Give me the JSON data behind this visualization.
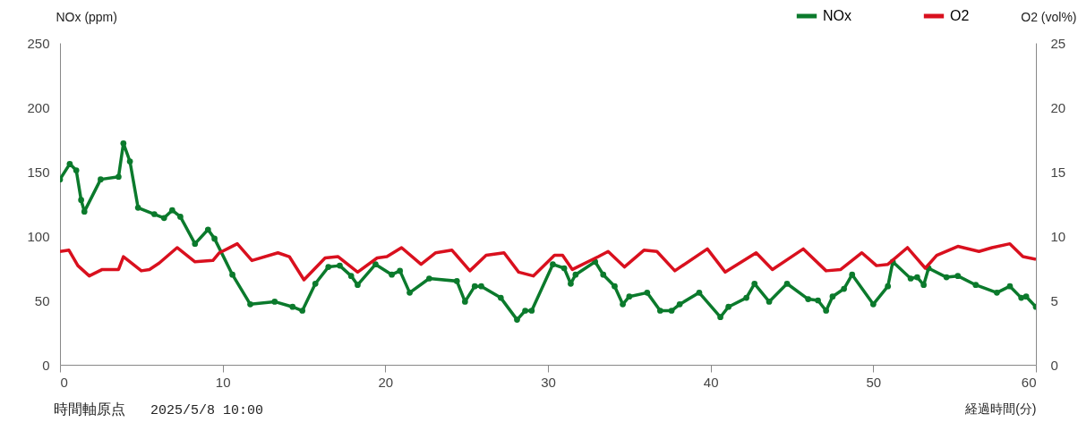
{
  "chart_data": {
    "type": "line",
    "xlabel": "経過時間(分)",
    "ylabel": "NOx (ppm)",
    "y2label": "O2  (vol%)",
    "annotations": [
      "時間軸原点",
      "2025/5/8 10:00"
    ],
    "xlim": [
      0,
      60
    ],
    "xticks": [
      0,
      10,
      20,
      30,
      40,
      50,
      60
    ],
    "ylim": [
      0,
      250
    ],
    "yticks": [
      0,
      50,
      100,
      150,
      200,
      250
    ],
    "y2lim": [
      0,
      25
    ],
    "y2ticks": [
      0,
      5,
      10,
      15,
      20,
      25
    ],
    "legend": "top right",
    "series": [
      {
        "name": "NOx",
        "color": "#0b7a2c",
        "marker": "circle",
        "x": [
          0,
          0.6,
          1.0,
          1.3,
          1.5,
          2.5,
          3.6,
          3.9,
          4.3,
          4.8,
          5.8,
          6.4,
          6.9,
          7.4,
          8.3,
          9.1,
          9.5,
          10.6,
          11.7,
          13.2,
          14.3,
          14.9,
          15.7,
          16.5,
          17.2,
          17.9,
          18.3,
          19.4,
          20.4,
          20.9,
          21.5,
          22.7,
          24.4,
          24.9,
          25.5,
          25.9,
          27.1,
          28.1,
          28.6,
          29.0,
          30.3,
          31.0,
          31.4,
          31.7,
          32.9,
          33.4,
          34.1,
          34.6,
          35.0,
          36.1,
          36.9,
          37.6,
          38.1,
          39.3,
          40.6,
          41.1,
          42.2,
          42.7,
          43.6,
          44.7,
          46.0,
          46.6,
          47.1,
          47.5,
          48.2,
          48.7,
          50.0,
          50.9,
          51.2,
          52.3,
          52.7,
          53.1,
          53.4,
          54.5,
          55.2,
          56.3,
          57.6,
          58.4,
          59.1,
          59.4,
          60
        ],
        "values": [
          144,
          156,
          151,
          128,
          119,
          144,
          146,
          172,
          158,
          122,
          117,
          114,
          120,
          115,
          94,
          105,
          98,
          70,
          47,
          49,
          45,
          42,
          63,
          76,
          77,
          69,
          62,
          78,
          70,
          73,
          56,
          67,
          65,
          49,
          61,
          61,
          52,
          35,
          42,
          42,
          78,
          75,
          63,
          70,
          80,
          70,
          61,
          47,
          53,
          56,
          42,
          42,
          47,
          56,
          37,
          45,
          52,
          63,
          49,
          63,
          51,
          50,
          42,
          53,
          59,
          70,
          47,
          61,
          80,
          67,
          68,
          62,
          75,
          68,
          69,
          62,
          56,
          61,
          52,
          53,
          45
        ]
      },
      {
        "name": "O2",
        "color": "#d9101e",
        "axis": "y2",
        "x": [
          0,
          0.55,
          1.1,
          1.8,
          2.6,
          3.6,
          3.9,
          4.2,
          5.0,
          5.5,
          6.1,
          7.2,
          8.3,
          9.4,
          9.8,
          10.9,
          11.8,
          13.4,
          14.1,
          15.0,
          16.3,
          17.1,
          18.3,
          19.5,
          20.1,
          21.0,
          22.2,
          23.1,
          24.1,
          25.2,
          26.2,
          27.3,
          28.2,
          29.1,
          30.4,
          30.9,
          31.5,
          33.1,
          33.7,
          34.7,
          35.9,
          36.7,
          37.8,
          39.8,
          40.9,
          42.8,
          43.8,
          45.7,
          47.1,
          48.0,
          49.3,
          50.2,
          50.9,
          52.1,
          53.2,
          53.9,
          55.2,
          56.5,
          57.3,
          58.4,
          59.2,
          60
        ],
        "values": [
          8.8,
          8.9,
          7.7,
          6.9,
          7.4,
          7.4,
          8.4,
          8.1,
          7.3,
          7.4,
          7.9,
          9.1,
          8.0,
          8.1,
          8.7,
          9.4,
          8.1,
          8.7,
          8.4,
          6.6,
          8.3,
          8.4,
          7.2,
          8.3,
          8.4,
          9.1,
          7.8,
          8.7,
          8.9,
          7.3,
          8.5,
          8.7,
          7.2,
          6.9,
          8.5,
          8.5,
          7.4,
          8.4,
          8.8,
          7.6,
          8.9,
          8.8,
          7.3,
          9.0,
          7.2,
          8.7,
          7.4,
          9.0,
          7.3,
          7.4,
          8.7,
          7.7,
          7.8,
          9.1,
          7.5,
          8.5,
          9.2,
          8.8,
          9.1,
          9.4,
          8.4,
          8.2
        ]
      }
    ]
  }
}
